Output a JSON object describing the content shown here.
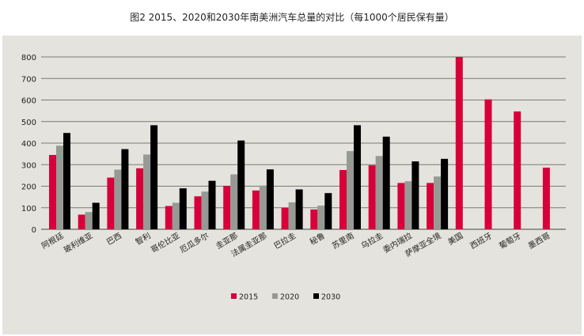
{
  "chart_data": {
    "type": "bar",
    "title": "图2 2015、2020和2030年南美洲汽车总量的对比（每1000个居民保有量）",
    "xlabel": "",
    "ylabel": "",
    "ylim": [
      0,
      800
    ],
    "yticks": [
      0,
      100,
      200,
      300,
      400,
      500,
      600,
      700,
      800
    ],
    "grid": true,
    "legend_position": "bottom",
    "categories": [
      "阿根廷",
      "玻利维亚",
      "巴西",
      "智利",
      "哥伦比亚",
      "厄瓜多尔",
      "圭亚那",
      "法属圭亚那",
      "巴拉圭",
      "秘鲁",
      "苏里南",
      "乌拉圭",
      "委内瑞拉",
      "萨摩亚全境",
      "美国",
      "西班牙",
      "葡萄牙",
      "墨西哥"
    ],
    "series": [
      {
        "name": "2015",
        "color": "#d7003a",
        "values": [
          345,
          68,
          240,
          283,
          108,
          153,
          202,
          180,
          100,
          92,
          275,
          297,
          215,
          215,
          800,
          603,
          547,
          286
        ]
      },
      {
        "name": "2020",
        "color": "#979a94",
        "values": [
          388,
          80,
          277,
          347,
          123,
          175,
          255,
          203,
          125,
          110,
          363,
          340,
          223,
          245,
          null,
          null,
          null,
          null
        ]
      },
      {
        "name": "2030",
        "color": "#000000",
        "values": [
          447,
          123,
          372,
          483,
          190,
          225,
          412,
          278,
          185,
          168,
          483,
          430,
          315,
          327,
          null,
          null,
          null,
          null
        ]
      }
    ]
  }
}
